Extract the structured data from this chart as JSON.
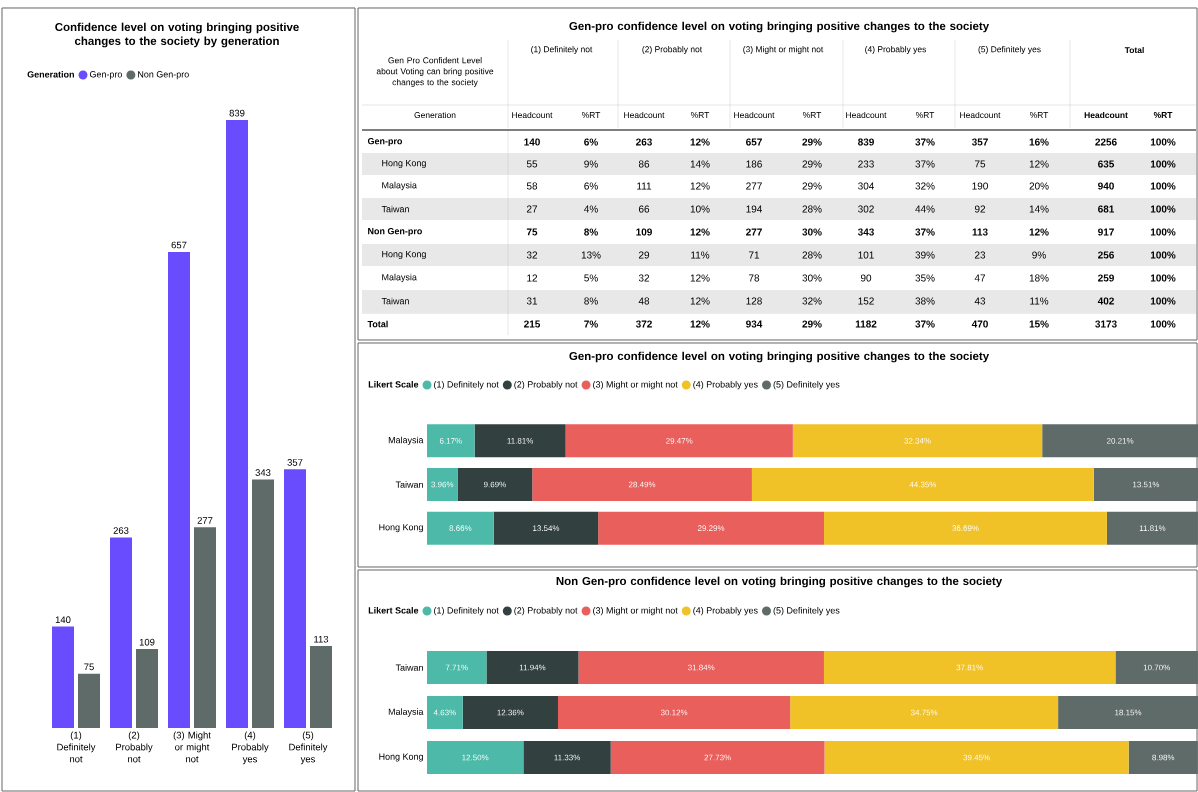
{
  "chart_data": [
    {
      "type": "bar",
      "title": "Confidence level on voting bringing positive changes to the society by generation",
      "legend_title": "Generation",
      "legend": "top left",
      "tick_labels": "x",
      "data_labels": true,
      "categories": [
        "(1) Definitely not",
        "(2) Probably not",
        "(3) Might or might not",
        "(4) Probably yes",
        "(5) Definitely yes"
      ],
      "series": [
        {
          "name": "Gen-pro",
          "color": "#6a4cff",
          "values": [
            140,
            263,
            657,
            839,
            357
          ]
        },
        {
          "name": "Non Gen-pro",
          "color": "#5f6b68",
          "values": [
            75,
            109,
            277,
            343,
            113
          ]
        }
      ]
    },
    {
      "type": "other",
      "title": "Gen-pro confidence level on voting bringing positive changes to the society",
      "ylabel": "Generation",
      "annotations": [
        "Gen Pro Confident Level about Voting can bring positive changes to the society",
        "(1) Definitely not",
        "(2) Probably not",
        "(3) Might or might not",
        "(4) Probably yes",
        "(5) Definitely yes",
        "Total"
      ],
      "categories": [
        "Headcount",
        "%RT",
        "Headcount",
        "%RT",
        "Headcount",
        "%RT",
        "Headcount",
        "%RT",
        "Headcount",
        "%RT",
        "Headcount",
        "%RT"
      ],
      "y_categories": [
        "Gen-pro",
        "Hong Kong",
        "Malaysia",
        "Taiwan",
        "Non Gen-pro",
        "Hong Kong",
        "Malaysia",
        "Taiwan",
        "Total"
      ],
      "cell_labels": [
        [
          "140",
          "6%",
          "263",
          "12%",
          "657",
          "29%",
          "839",
          "37%",
          "357",
          "16%",
          "2256",
          "100%"
        ],
        [
          "55",
          "9%",
          "86",
          "14%",
          "186",
          "29%",
          "233",
          "37%",
          "75",
          "12%",
          "635",
          "100%"
        ],
        [
          "58",
          "6%",
          "111",
          "12%",
          "277",
          "29%",
          "304",
          "32%",
          "190",
          "20%",
          "940",
          "100%"
        ],
        [
          "27",
          "4%",
          "66",
          "10%",
          "194",
          "28%",
          "302",
          "44%",
          "92",
          "14%",
          "681",
          "100%"
        ],
        [
          "75",
          "8%",
          "109",
          "12%",
          "277",
          "30%",
          "343",
          "37%",
          "113",
          "12%",
          "917",
          "100%"
        ],
        [
          "32",
          "13%",
          "29",
          "11%",
          "71",
          "28%",
          "101",
          "39%",
          "23",
          "9%",
          "256",
          "100%"
        ],
        [
          "12",
          "5%",
          "32",
          "12%",
          "78",
          "30%",
          "90",
          "35%",
          "47",
          "18%",
          "259",
          "100%"
        ],
        [
          "31",
          "8%",
          "48",
          "12%",
          "128",
          "32%",
          "152",
          "38%",
          "43",
          "11%",
          "402",
          "100%"
        ],
        [
          "215",
          "7%",
          "372",
          "12%",
          "934",
          "29%",
          "1182",
          "37%",
          "470",
          "15%",
          "3173",
          "100%"
        ]
      ]
    },
    {
      "type": "bar",
      "orientation": "horizontal",
      "stacked": true,
      "title": "Gen-pro confidence level on voting bringing positive changes to the society",
      "legend_title": "Likert Scale",
      "legend": "top left",
      "tick_labels": "y",
      "categories": [
        "Malaysia",
        "Taiwan",
        "Hong Kong"
      ],
      "series": [
        {
          "name": "(1) Definitely not",
          "color": "#4dbaa9",
          "values": [
            6.17,
            3.96,
            8.66
          ],
          "value_labels": [
            "6.17%",
            "3.96%",
            "8.66%"
          ]
        },
        {
          "name": "(2) Probably not",
          "color": "#334040",
          "values": [
            11.81,
            9.69,
            13.54
          ],
          "value_labels": [
            "11.81%",
            "9.69%",
            "13.54%"
          ]
        },
        {
          "name": "(3) Might or might not",
          "color": "#e85f5c",
          "values": [
            29.47,
            28.49,
            29.29
          ],
          "value_labels": [
            "29.47%",
            "28.49%",
            "29.29%"
          ]
        },
        {
          "name": "(4) Probably yes",
          "color": "#f0c228",
          "values": [
            32.34,
            44.35,
            36.69
          ],
          "value_labels": [
            "32.34%",
            "44.35%",
            "36.69%"
          ]
        },
        {
          "name": "(5) Definitely yes",
          "color": "#5f6b68",
          "values": [
            20.21,
            13.51,
            11.81
          ],
          "value_labels": [
            "20.21%",
            "13.51%",
            "11.81%"
          ]
        }
      ]
    },
    {
      "type": "bar",
      "orientation": "horizontal",
      "stacked": true,
      "title": "Non Gen-pro confidence level on voting bringing positive changes to the society",
      "legend_title": "Likert Scale",
      "legend": "top left",
      "tick_labels": "y",
      "categories": [
        "Taiwan",
        "Malaysia",
        "Hong Kong"
      ],
      "series": [
        {
          "name": "(1) Definitely not",
          "color": "#4dbaa9",
          "values": [
            7.71,
            4.63,
            12.5
          ],
          "value_labels": [
            "7.71%",
            "4.63%",
            "12.50%"
          ]
        },
        {
          "name": "(2) Probably not",
          "color": "#334040",
          "values": [
            11.94,
            12.36,
            11.33
          ],
          "value_labels": [
            "11.94%",
            "12.36%",
            "11.33%"
          ]
        },
        {
          "name": "(3) Might or might not",
          "color": "#e85f5c",
          "values": [
            31.84,
            30.12,
            27.73
          ],
          "value_labels": [
            "31.84%",
            "30.12%",
            "27.73%"
          ]
        },
        {
          "name": "(4) Probably yes",
          "color": "#f0c228",
          "values": [
            37.81,
            34.75,
            39.45
          ],
          "value_labels": [
            "37.81%",
            "34.75%",
            "39.45%"
          ]
        },
        {
          "name": "(5) Definitely yes",
          "color": "#5f6b68",
          "values": [
            10.7,
            18.15,
            8.98
          ],
          "value_labels": [
            "10.70%",
            "18.15%",
            "8.98%"
          ]
        }
      ]
    }
  ]
}
